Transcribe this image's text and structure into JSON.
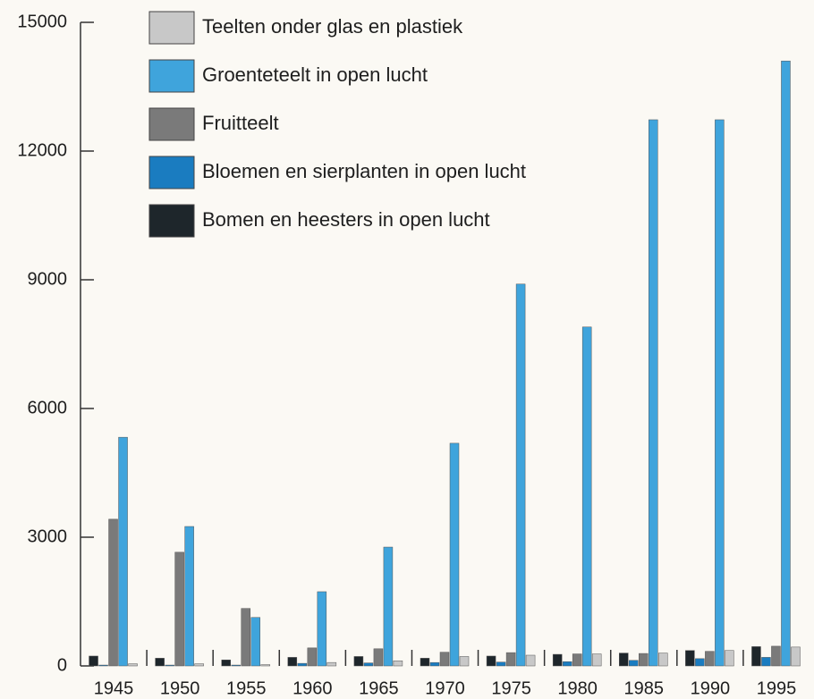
{
  "chart_data": {
    "type": "bar",
    "categories": [
      "1945",
      "1950",
      "1955",
      "1960",
      "1965",
      "1970",
      "1975",
      "1980",
      "1985",
      "1990",
      "1995"
    ],
    "series": [
      {
        "name": "Bomen en heesters in open lucht",
        "color": "#1e262b",
        "values": [
          230,
          180,
          140,
          200,
          220,
          180,
          230,
          270,
          300,
          360,
          450
        ]
      },
      {
        "name": "Bloemen en sierplanten in open lucht",
        "color": "#1a7cc0",
        "values": [
          20,
          20,
          20,
          60,
          70,
          80,
          90,
          100,
          130,
          170,
          200
        ]
      },
      {
        "name": "Fruitteelt",
        "color": "#7a7a7a",
        "values": [
          3420,
          2650,
          1340,
          420,
          400,
          320,
          310,
          280,
          290,
          340,
          460
        ]
      },
      {
        "name": "Groenteteelt in open lucht",
        "color": "#3fa4dc",
        "values": [
          5330,
          3250,
          1130,
          1730,
          2770,
          5190,
          8900,
          7900,
          12730,
          12730,
          14100
        ]
      },
      {
        "name": "Teelten onder glas en plastiek",
        "color": "#c8c8c8",
        "values": [
          50,
          50,
          30,
          80,
          120,
          220,
          250,
          280,
          300,
          360,
          440
        ]
      }
    ],
    "ylim": [
      0,
      15000
    ],
    "yticks": [
      0,
      3000,
      6000,
      9000,
      12000,
      15000
    ],
    "legend": "top-left",
    "legend_order": "reverse"
  }
}
